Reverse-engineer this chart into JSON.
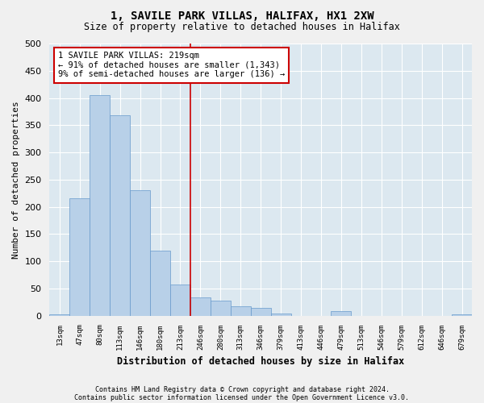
{
  "title1": "1, SAVILE PARK VILLAS, HALIFAX, HX1 2XW",
  "title2": "Size of property relative to detached houses in Halifax",
  "xlabel": "Distribution of detached houses by size in Halifax",
  "ylabel": "Number of detached properties",
  "bar_color": "#b8d0e8",
  "bar_edge_color": "#6699cc",
  "background_color": "#dce8f0",
  "grid_color": "#ffffff",
  "fig_color": "#f0f0f0",
  "categories": [
    "13sqm",
    "47sqm",
    "80sqm",
    "113sqm",
    "146sqm",
    "180sqm",
    "213sqm",
    "246sqm",
    "280sqm",
    "313sqm",
    "346sqm",
    "379sqm",
    "413sqm",
    "446sqm",
    "479sqm",
    "513sqm",
    "546sqm",
    "579sqm",
    "612sqm",
    "646sqm",
    "679sqm"
  ],
  "values": [
    3,
    215,
    405,
    368,
    230,
    120,
    57,
    33,
    27,
    17,
    14,
    4,
    0,
    0,
    8,
    0,
    0,
    0,
    0,
    0,
    2
  ],
  "ylim": [
    0,
    500
  ],
  "yticks": [
    0,
    50,
    100,
    150,
    200,
    250,
    300,
    350,
    400,
    450,
    500
  ],
  "vline_x": 6.5,
  "vline_color": "#cc0000",
  "annotation_text": "1 SAVILE PARK VILLAS: 219sqm\n← 91% of detached houses are smaller (1,343)\n9% of semi-detached houses are larger (136) →",
  "annotation_box_color": "#cc0000",
  "footer1": "Contains HM Land Registry data © Crown copyright and database right 2024.",
  "footer2": "Contains public sector information licensed under the Open Government Licence v3.0."
}
